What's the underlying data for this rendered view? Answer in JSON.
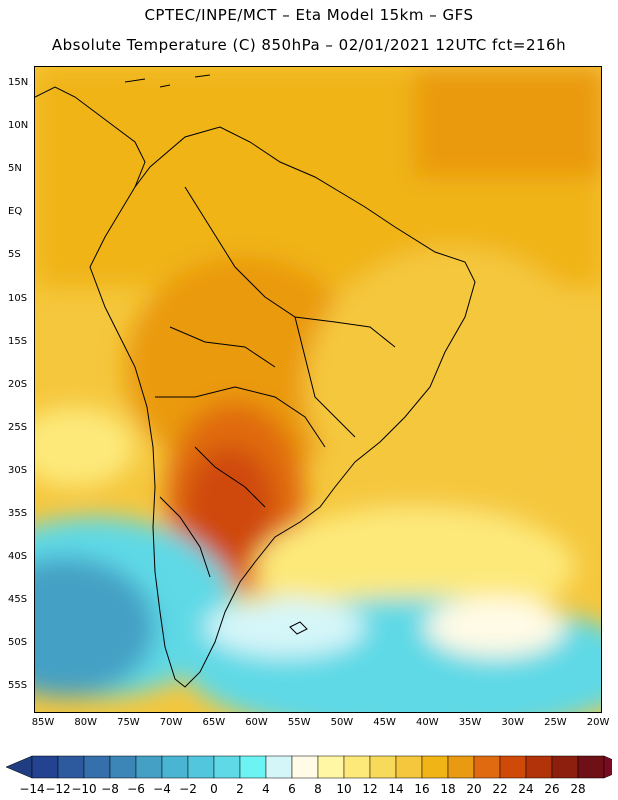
{
  "header": {
    "line1": "CPTEC/INPE/MCT –  Eta Model 15km – GFS",
    "line2": "Absolute Temperature (C) 850hPa – 02/01/2021 12UTC fct=216h"
  },
  "axes": {
    "lat_labels": [
      "15N",
      "10N",
      "5N",
      "EQ",
      "5S",
      "10S",
      "15S",
      "20S",
      "25S",
      "30S",
      "35S",
      "40S",
      "45S",
      "50S",
      "55S"
    ],
    "lon_labels": [
      "85W",
      "80W",
      "75W",
      "70W",
      "65W",
      "60W",
      "55W",
      "50W",
      "45W",
      "40W",
      "35W",
      "30W",
      "25W",
      "20W"
    ]
  },
  "colorbar": {
    "labels": [
      "-14",
      "-12",
      "-10",
      "-8",
      "-6",
      "-4",
      "-2",
      "0",
      "2",
      "4",
      "6",
      "8",
      "10",
      "12",
      "14",
      "16",
      "18",
      "20",
      "22",
      "24",
      "26",
      "28"
    ],
    "colors": [
      "#23428f",
      "#2d5a9f",
      "#3570ac",
      "#3b86b7",
      "#44a0c5",
      "#4ab5d3",
      "#52c6dc",
      "#5fd9e6",
      "#6cf3f3",
      "#d5f6f9",
      "#fffbe6",
      "#fff7a3",
      "#fde97a",
      "#f8da5a",
      "#f5c73d",
      "#f0b416",
      "#ea9a10",
      "#e06a0f",
      "#cf4a09",
      "#b23209",
      "#8d1f0e",
      "#6e1016"
    ],
    "left_arrow_color": "#1f3d80",
    "right_arrow_color": "#7a0a24"
  },
  "map": {
    "ocean_south_color": "#52c6dc",
    "land_hot_color": "#cf4a09"
  }
}
